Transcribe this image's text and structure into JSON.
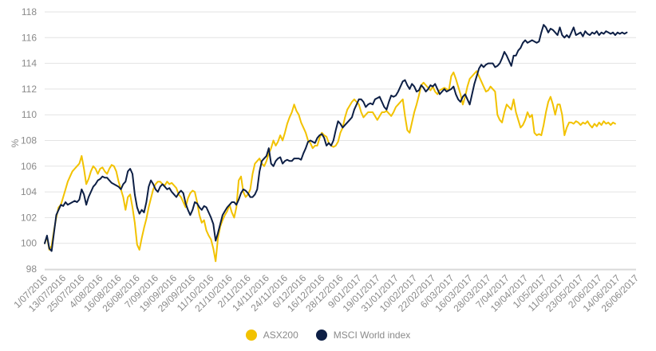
{
  "chart_data": {
    "type": "line",
    "title": "",
    "xlabel": "",
    "ylabel": "%",
    "ylim": [
      98,
      118
    ],
    "yticks": [
      98,
      100,
      102,
      104,
      106,
      108,
      110,
      112,
      114,
      116,
      118
    ],
    "grid": true,
    "legend_position": "bottom-center",
    "x_tick_labels": [
      "1/07/2016",
      "13/07/2016",
      "25/07/2016",
      "4/08/2016",
      "16/08/2016",
      "26/08/2016",
      "7/09/2016",
      "19/09/2016",
      "29/09/2016",
      "11/10/2016",
      "21/10/2016",
      "2/11/2016",
      "14/11/2016",
      "24/11/2016",
      "6/12/2016",
      "16/12/2016",
      "28/12/2016",
      "9/01/2017",
      "19/01/2017",
      "31/01/2017",
      "10/02/2017",
      "22/02/2017",
      "6/03/2017",
      "16/03/2017",
      "28/03/2017",
      "7/04/2017",
      "19/04/2017",
      "1/05/2017",
      "11/05/2017",
      "23/05/2017",
      "2/06/2017",
      "14/06/2017",
      "26/06/2017"
    ],
    "x_tick_positions": [
      0,
      8,
      16,
      24,
      32,
      40,
      48,
      56,
      64,
      72,
      80,
      88,
      96,
      104,
      112,
      120,
      128,
      136,
      144,
      152,
      160,
      168,
      176,
      184,
      192,
      200,
      208,
      216,
      224,
      232,
      240,
      248,
      256
    ],
    "x_max": 256,
    "series": [
      {
        "name": "ASX200",
        "color": "#f2c200",
        "values": [
          100.0,
          100.5,
          99.5,
          99.8,
          101.0,
          102.0,
          102.8,
          103.0,
          103.6,
          104.2,
          104.8,
          105.2,
          105.6,
          105.8,
          106.0,
          106.2,
          106.8,
          105.8,
          104.6,
          105.0,
          105.6,
          106.0,
          105.8,
          105.4,
          105.8,
          105.9,
          105.6,
          105.4,
          105.8,
          106.1,
          106.0,
          105.6,
          104.8,
          104.2,
          103.6,
          102.6,
          103.6,
          103.8,
          102.8,
          101.6,
          99.9,
          99.5,
          100.4,
          101.2,
          101.9,
          102.8,
          103.5,
          104.2,
          104.6,
          104.8,
          104.8,
          104.6,
          104.5,
          104.8,
          104.6,
          104.7,
          104.5,
          104.3,
          103.8,
          103.6,
          103.2,
          102.8,
          103.5,
          103.9,
          104.1,
          104.0,
          103.2,
          102.2,
          101.6,
          101.8,
          101.0,
          100.6,
          100.3,
          99.6,
          98.6,
          100.4,
          101.3,
          101.8,
          102.2,
          102.5,
          103.0,
          102.4,
          102.0,
          102.8,
          104.9,
          105.2,
          104.0,
          103.6,
          103.8,
          104.2,
          105.4,
          106.2,
          106.4,
          106.6,
          106.2,
          106.0,
          106.4,
          107.0,
          107.4,
          108.0,
          107.6,
          107.9,
          108.4,
          108.0,
          108.6,
          109.3,
          109.8,
          110.2,
          110.8,
          110.3,
          110.0,
          109.4,
          109.0,
          108.6,
          108.0,
          107.8,
          107.4,
          107.6,
          107.6,
          108.2,
          108.6,
          108.4,
          108.3,
          107.8,
          107.6,
          107.5,
          107.6,
          107.9,
          108.6,
          109.0,
          109.8,
          110.4,
          110.7,
          111.0,
          111.2,
          111.0,
          110.8,
          110.2,
          109.8,
          110.0,
          110.2,
          110.2,
          110.2,
          109.9,
          109.6,
          109.9,
          110.2,
          110.2,
          110.3,
          110.1,
          109.9,
          110.2,
          110.6,
          110.8,
          111.0,
          111.2,
          109.9,
          108.8,
          108.6,
          109.4,
          110.2,
          110.8,
          111.5,
          112.3,
          112.5,
          112.3,
          112.1,
          111.9,
          112.2,
          111.8,
          111.6,
          111.9,
          112.0,
          112.1,
          112.0,
          111.9,
          113.0,
          113.3,
          112.8,
          112.2,
          111.6,
          110.8,
          111.4,
          112.2,
          112.8,
          113.0,
          113.2,
          113.4,
          113.0,
          112.6,
          112.2,
          111.8,
          111.9,
          112.2,
          112.0,
          111.8,
          110.0,
          109.6,
          109.4,
          110.2,
          110.8,
          110.6,
          110.4,
          111.2,
          110.2,
          109.6,
          109.0,
          109.2,
          109.6,
          110.2,
          109.8,
          110.0,
          108.6,
          108.4,
          108.5,
          108.4,
          109.2,
          110.2,
          111.0,
          111.4,
          110.8,
          110.0,
          110.8,
          110.8,
          110.0,
          108.4,
          109.0,
          109.4,
          109.4,
          109.3,
          109.5,
          109.4,
          109.2,
          109.4,
          109.3,
          109.5,
          109.2,
          109.0,
          109.3,
          109.1,
          109.4,
          109.2,
          109.5,
          109.3,
          109.4,
          109.2,
          109.4,
          109.3
        ]
      },
      {
        "name": "MSCI World index",
        "color": "#0d1f45",
        "values": [
          100.0,
          100.6,
          99.6,
          99.4,
          100.8,
          102.2,
          102.6,
          103.0,
          102.9,
          103.2,
          103.0,
          103.1,
          103.2,
          103.3,
          103.2,
          103.4,
          104.2,
          103.8,
          103.0,
          103.6,
          104.0,
          104.4,
          104.6,
          104.9,
          105.0,
          105.2,
          105.1,
          105.1,
          104.9,
          104.7,
          104.6,
          104.5,
          104.4,
          104.2,
          104.6,
          104.8,
          105.6,
          105.8,
          105.4,
          103.8,
          102.8,
          102.3,
          102.6,
          102.4,
          103.2,
          104.4,
          104.9,
          104.6,
          104.2,
          104.0,
          104.4,
          104.6,
          104.4,
          104.2,
          104.3,
          104.0,
          103.8,
          103.6,
          103.9,
          104.1,
          103.9,
          103.1,
          102.6,
          102.2,
          102.6,
          103.2,
          103.1,
          102.8,
          102.6,
          102.9,
          102.8,
          102.4,
          102.0,
          101.5,
          100.2,
          100.8,
          101.5,
          102.2,
          102.5,
          102.8,
          103.0,
          103.2,
          103.2,
          103.0,
          103.4,
          103.9,
          104.2,
          104.1,
          103.9,
          103.6,
          103.6,
          103.8,
          104.2,
          105.6,
          106.4,
          106.6,
          106.8,
          107.4,
          106.2,
          106.0,
          106.4,
          106.6,
          106.7,
          106.2,
          106.4,
          106.5,
          106.4,
          106.4,
          106.6,
          106.6,
          106.6,
          106.5,
          107.0,
          107.4,
          107.9,
          108.0,
          107.9,
          107.8,
          108.2,
          108.4,
          108.5,
          108.2,
          107.6,
          107.8,
          107.6,
          108.0,
          108.8,
          109.5,
          109.3,
          109.0,
          109.2,
          109.4,
          109.6,
          109.8,
          110.4,
          110.8,
          111.2,
          111.2,
          111.0,
          110.6,
          110.8,
          110.9,
          110.8,
          111.2,
          111.3,
          111.4,
          111.0,
          110.6,
          110.4,
          111.0,
          111.5,
          111.4,
          111.5,
          111.8,
          112.2,
          112.6,
          112.7,
          112.3,
          112.0,
          112.4,
          112.2,
          111.8,
          111.9,
          112.3,
          112.1,
          111.8,
          112.0,
          112.3,
          112.2,
          112.4,
          112.0,
          111.6,
          111.8,
          112.0,
          111.8,
          111.9,
          112.0,
          112.2,
          111.6,
          111.2,
          111.0,
          111.4,
          111.6,
          111.2,
          110.8,
          111.6,
          112.4,
          113.0,
          113.6,
          113.9,
          113.7,
          113.9,
          114.0,
          114.0,
          114.0,
          113.7,
          113.8,
          114.0,
          114.4,
          114.9,
          114.6,
          114.2,
          113.8,
          114.6,
          114.6,
          115.0,
          115.2,
          115.6,
          115.8,
          115.6,
          115.7,
          115.8,
          115.7,
          115.6,
          115.7,
          116.4,
          117.0,
          116.8,
          116.4,
          116.7,
          116.6,
          116.4,
          116.2,
          116.8,
          116.2,
          116.0,
          116.2,
          116.0,
          116.4,
          116.8,
          116.2,
          116.3,
          116.4,
          116.1,
          116.5,
          116.3,
          116.2,
          116.4,
          116.3,
          116.5,
          116.2,
          116.4,
          116.3,
          116.5,
          116.4,
          116.3,
          116.4,
          116.2,
          116.4,
          116.3,
          116.4,
          116.3,
          116.4
        ]
      }
    ]
  }
}
